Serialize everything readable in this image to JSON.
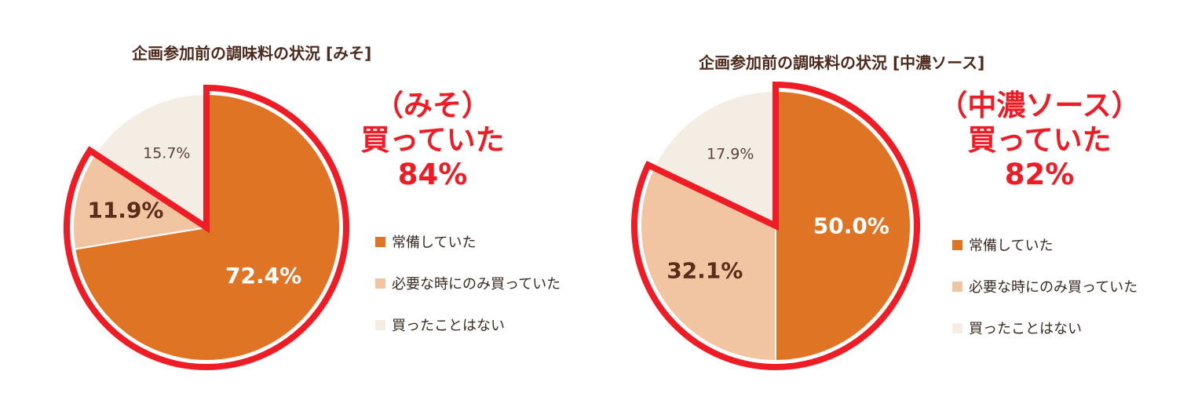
{
  "colors": {
    "regular": "#df7524",
    "as_needed": "#f2c5a2",
    "never": "#f3ede4",
    "highlight": "#ee1c25",
    "dark_label": "#5a2c1a"
  },
  "legend": [
    "常備していた",
    "必要な時にのみ買っていた",
    "買ったことはない"
  ],
  "chart_data": [
    {
      "type": "pie",
      "title": "企画参加前の調味料の状況 [みそ]",
      "categories": [
        "常備していた",
        "必要な時にのみ買っていた",
        "買ったことはない"
      ],
      "values": [
        72.4,
        11.9,
        15.7
      ],
      "labels": [
        "72.4%",
        "11.9%",
        "15.7%"
      ],
      "callout": [
        "（みそ）",
        "買っていた",
        "84%"
      ]
    },
    {
      "type": "pie",
      "title": "企画参加前の調味料の状況 [中濃ソース]",
      "categories": [
        "常備していた",
        "必要な時にのみ買っていた",
        "買ったことはない"
      ],
      "values": [
        50.0,
        32.1,
        17.9
      ],
      "labels": [
        "50.0%",
        "32.1%",
        "17.9%"
      ],
      "callout": [
        "（中濃ソース）",
        "買っていた",
        "82%"
      ]
    }
  ]
}
